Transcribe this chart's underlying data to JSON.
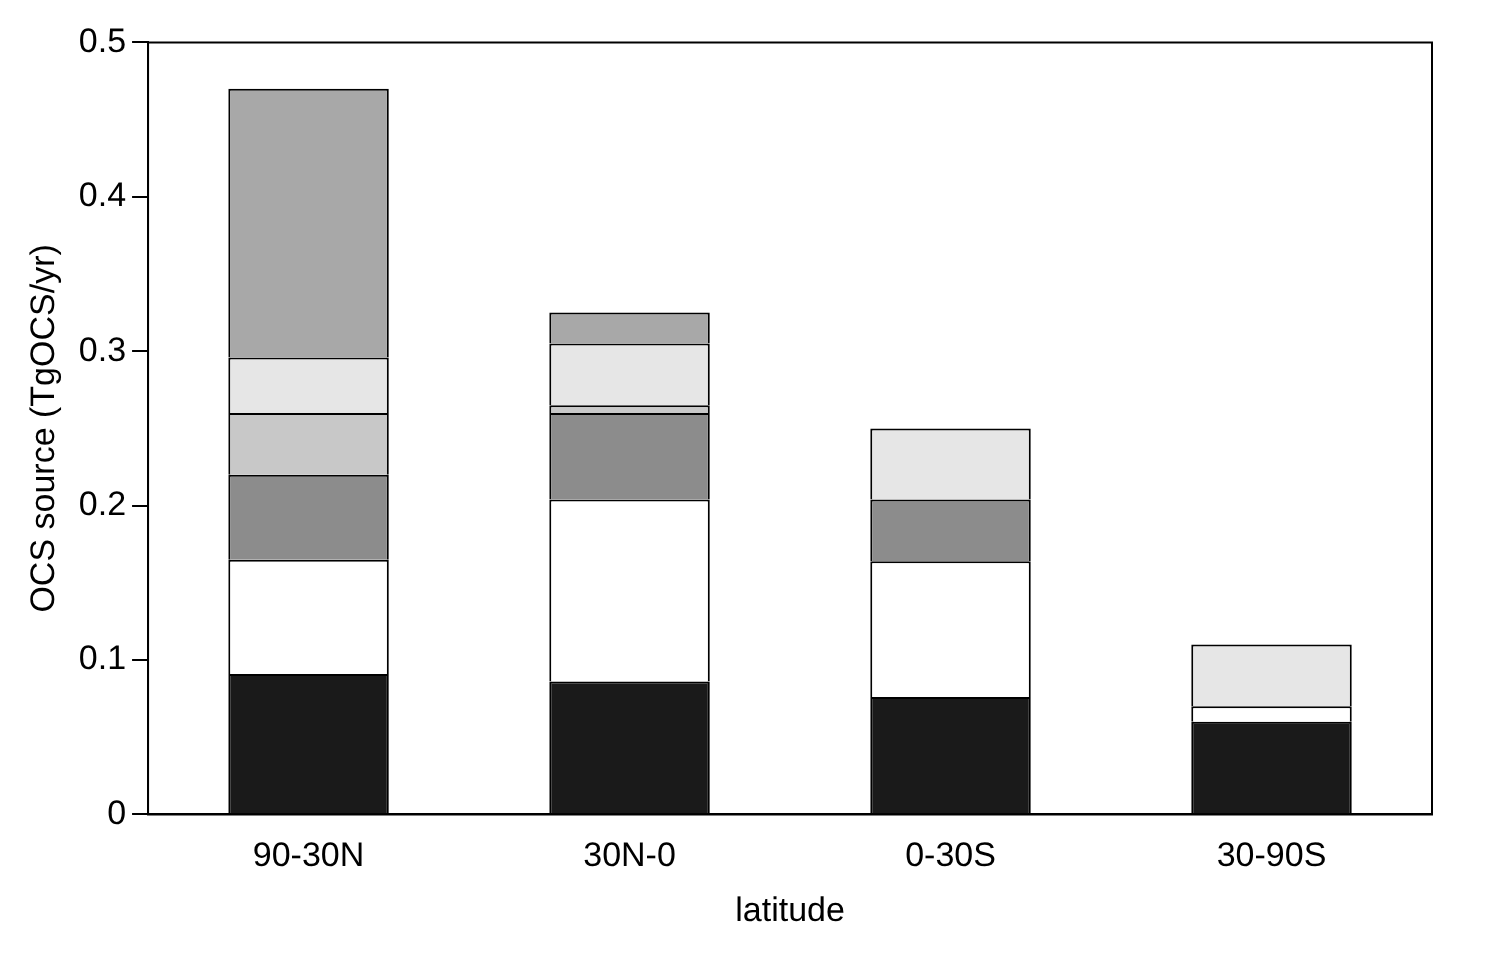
{
  "chart_data": {
    "type": "bar",
    "stacked": true,
    "xlabel": "latitude",
    "ylabel": "OCS source (TgOCS/yr)",
    "categories": [
      "90-30N",
      "30N-0",
      "0-30S",
      "30-90S"
    ],
    "ylim": [
      0,
      0.5
    ],
    "yticks": [
      0,
      0.1,
      0.2,
      0.3,
      0.4,
      0.5
    ],
    "grid": false,
    "legend": false,
    "series": [
      {
        "color": "#1a1a1a",
        "values": [
          0.091,
          0.086,
          0.076,
          0.06
        ]
      },
      {
        "color": "#ffffff",
        "values": [
          0.074,
          0.118,
          0.088,
          0.01
        ]
      },
      {
        "color": "#8c8c8c",
        "values": [
          0.055,
          0.056,
          0.04,
          0
        ]
      },
      {
        "color": "#c8c8c8",
        "values": [
          0.04,
          0.005,
          0,
          0
        ]
      },
      {
        "color": "#e6e6e6",
        "values": [
          0.036,
          0.04,
          0.046,
          0.04
        ]
      },
      {
        "color": "#a8a8a8",
        "values": [
          0.174,
          0.02,
          0,
          0
        ]
      }
    ]
  }
}
